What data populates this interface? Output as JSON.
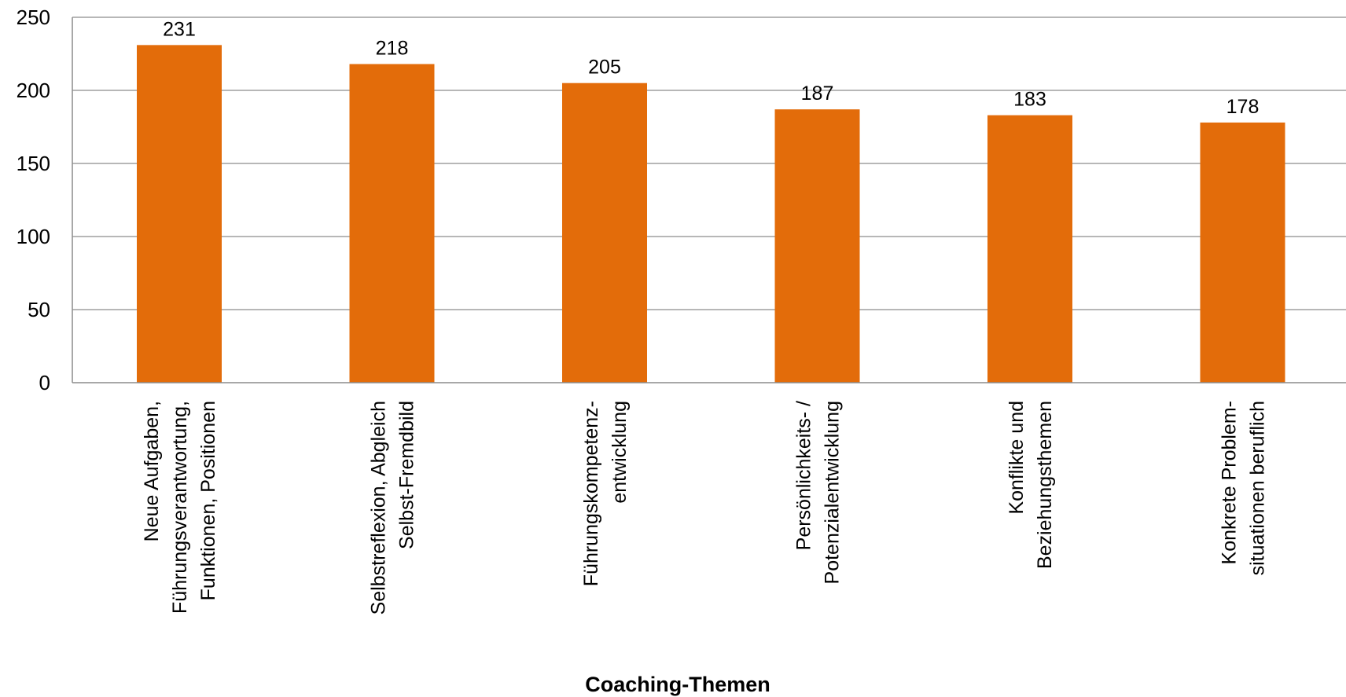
{
  "chart_data": {
    "type": "bar",
    "title": "",
    "xlabel": "Coaching-Themen",
    "ylabel": "",
    "ylim": [
      0,
      250
    ],
    "yticks": [
      0,
      50,
      100,
      150,
      200,
      250
    ],
    "grid": true,
    "legend": "none",
    "categories": [
      [
        "Neue Aufgaben,",
        "Führungsverantwortung,",
        "Funktionen, Positionen"
      ],
      [
        "Selbstreflexion, Abgleich",
        "Selbst-Fremdbild"
      ],
      [
        "Führungskompetenz-",
        "entwicklung"
      ],
      [
        "Persönlichkeits- /",
        "Potenzialentwicklung"
      ],
      [
        "Konflikte und",
        "Beziehungsthemen"
      ],
      [
        "Konkrete Problem-",
        "situationen beruflich"
      ]
    ],
    "values": [
      231,
      218,
      205,
      187,
      183,
      178
    ],
    "data_labels": [
      "231",
      "218",
      "205",
      "187",
      "183",
      "178"
    ],
    "colors": {
      "bar": "#E36C0A",
      "grid": "#8C8C8C",
      "axis": "#8C8C8C"
    }
  }
}
